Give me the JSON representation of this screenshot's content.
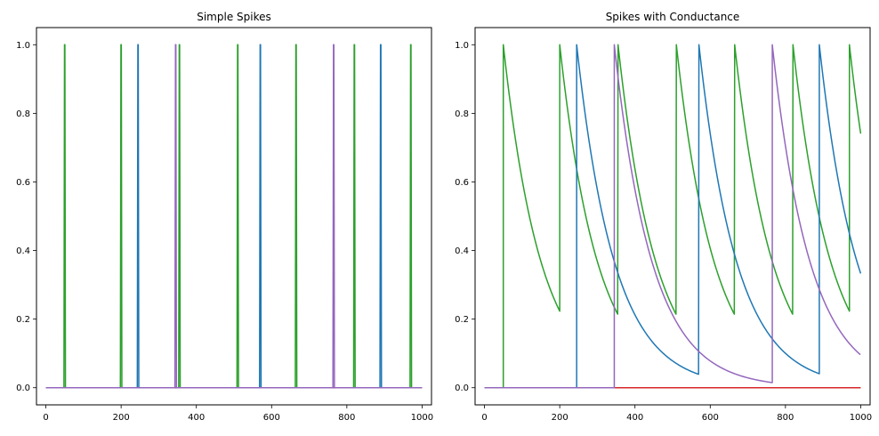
{
  "chart_data": [
    {
      "type": "line",
      "title": "Simple Spikes",
      "xlabel": "",
      "ylabel": "",
      "xlim": [
        -25,
        1025
      ],
      "ylim": [
        -0.05,
        1.05
      ],
      "xticks": [
        0,
        200,
        400,
        600,
        800,
        1000
      ],
      "xtick_labels": [
        "0",
        "200",
        "400",
        "600",
        "800",
        "1000"
      ],
      "yticks": [
        0.0,
        0.2,
        0.4,
        0.6,
        0.8,
        1.0
      ],
      "ytick_labels": [
        "0.0",
        "0.2",
        "0.4",
        "0.6",
        "0.8",
        "1.0"
      ],
      "grid": false,
      "legend": "none",
      "series": [
        {
          "color": "#2ca02c",
          "spikes": [
            50,
            200,
            355,
            510,
            665,
            820,
            970
          ]
        },
        {
          "color": "#1f77b4",
          "spikes": [
            245,
            570,
            890
          ]
        },
        {
          "color": "#d62728",
          "spikes": []
        },
        {
          "color": "#9467bd",
          "spikes": [
            345,
            765
          ]
        }
      ]
    },
    {
      "type": "line",
      "title": "Spikes with Conductance",
      "xlabel": "",
      "ylabel": "",
      "xlim": [
        -25,
        1025
      ],
      "ylim": [
        -0.05,
        1.05
      ],
      "xticks": [
        0,
        200,
        400,
        600,
        800,
        1000
      ],
      "xtick_labels": [
        "0",
        "200",
        "400",
        "600",
        "800",
        "1000"
      ],
      "yticks": [
        0.0,
        0.2,
        0.4,
        0.6,
        0.8,
        1.0
      ],
      "ytick_labels": [
        "0.0",
        "0.2",
        "0.4",
        "0.6",
        "0.8",
        "1.0"
      ],
      "grid": false,
      "legend": "none",
      "series": [
        {
          "color": "#2ca02c",
          "spikes": [
            50,
            200,
            355,
            510,
            665,
            820,
            970
          ],
          "decay_tau": 100,
          "x_end": 1000
        },
        {
          "color": "#1f77b4",
          "spikes": [
            245,
            570,
            890
          ],
          "decay_tau": 100,
          "x_end": 1000
        },
        {
          "color": "#d62728",
          "spikes": [],
          "from_x": 345,
          "x_end": 1000
        },
        {
          "color": "#9467bd",
          "spikes": [
            345,
            765
          ],
          "decay_tau": 100,
          "x_end": 1000
        }
      ]
    }
  ]
}
